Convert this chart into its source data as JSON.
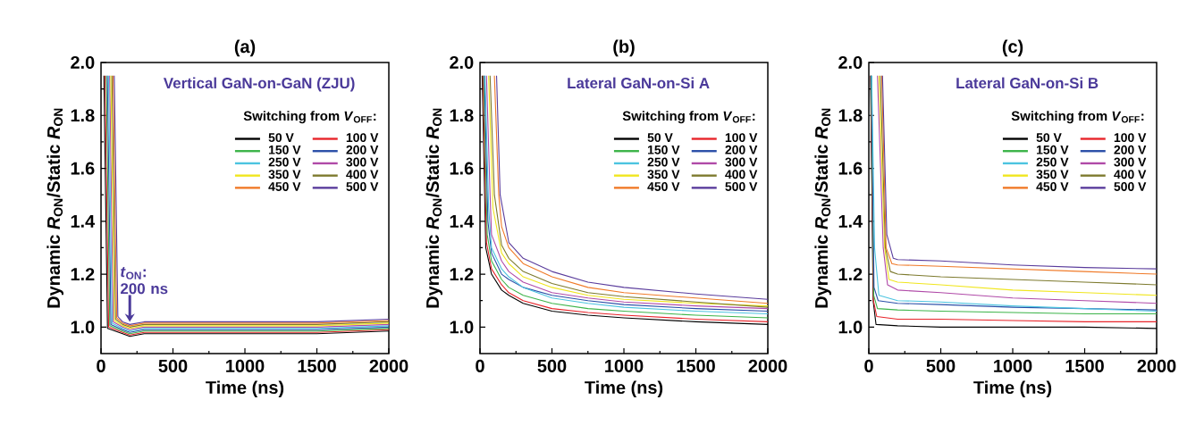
{
  "chart_data": [
    {
      "type": "line",
      "title": "(a)",
      "subtitle": "Vertical GaN-on-GaN (ZJU)",
      "xlabel": "Time (ns)",
      "ylabel": "Dynamic *R*$_{ON}$/Static *R*$_{ON}$",
      "legend_title": "Switching from *V*$_{OFF}$:",
      "legend": "top right",
      "xlim": [
        0,
        2000
      ],
      "ylim": [
        0.9,
        2.0
      ],
      "xticks": [
        0,
        500,
        1000,
        1500,
        2000
      ],
      "yticks": [
        {
          "value": 1.0,
          "label": "1.0"
        },
        {
          "value": 1.2,
          "label": "1.2"
        },
        {
          "value": 1.4,
          "label": "1.4"
        },
        {
          "value": 1.6,
          "label": "1.6"
        },
        {
          "value": 1.8,
          "label": "1.8"
        },
        {
          "value": 2.0,
          "label": "2.0"
        }
      ],
      "annotations": [
        {
          "text": "*t*$_{ON}$: 200 ns",
          "x": 200,
          "y": 1.02
        }
      ],
      "series": [
        {
          "name": "50 V",
          "color": "#000000",
          "x": [
            20,
            45,
            150,
            200,
            300,
            500,
            1000,
            1500,
            2000
          ],
          "values": [
            1.95,
            0.995,
            0.975,
            0.965,
            0.975,
            0.975,
            0.975,
            0.975,
            0.985
          ]
        },
        {
          "name": "100 V",
          "color": "#e8242a",
          "x": [
            28,
            53,
            150,
            200,
            300,
            500,
            1000,
            1500,
            2000
          ],
          "values": [
            1.95,
            1.0,
            0.98,
            0.97,
            0.98,
            0.98,
            0.98,
            0.98,
            0.99
          ]
        },
        {
          "name": "150 V",
          "color": "#3cb449",
          "x": [
            36,
            61,
            150,
            200,
            300,
            500,
            1000,
            1500,
            2000
          ],
          "values": [
            1.95,
            1.005,
            0.985,
            0.975,
            0.985,
            0.985,
            0.985,
            0.985,
            0.995
          ]
        },
        {
          "name": "200 V",
          "color": "#2a4fa8",
          "x": [
            44,
            69,
            150,
            200,
            300,
            500,
            1000,
            1500,
            2000
          ],
          "values": [
            1.95,
            1.01,
            0.99,
            0.98,
            0.99,
            0.99,
            0.99,
            0.99,
            1.0
          ]
        },
        {
          "name": "250 V",
          "color": "#4cc4e0",
          "x": [
            52,
            77,
            150,
            200,
            300,
            500,
            1000,
            1500,
            2000
          ],
          "values": [
            1.95,
            1.015,
            0.995,
            0.985,
            0.995,
            0.995,
            0.995,
            0.995,
            1.005
          ]
        },
        {
          "name": "300 V",
          "color": "#b04aa8",
          "x": [
            60,
            85,
            150,
            200,
            300,
            500,
            1000,
            1500,
            2000
          ],
          "values": [
            1.95,
            1.02,
            1.0,
            0.99,
            1.0,
            1.0,
            1.0,
            1.0,
            1.01
          ]
        },
        {
          "name": "350 V",
          "color": "#f0e61e",
          "x": [
            68,
            93,
            150,
            200,
            300,
            500,
            1000,
            1500,
            2000
          ],
          "values": [
            1.95,
            1.025,
            1.005,
            0.995,
            1.005,
            1.005,
            1.005,
            1.005,
            1.015
          ]
        },
        {
          "name": "400 V",
          "color": "#7d7a2e",
          "x": [
            76,
            101,
            150,
            200,
            300,
            500,
            1000,
            1500,
            2000
          ],
          "values": [
            1.95,
            1.03,
            1.01,
            1.0,
            1.01,
            1.01,
            1.01,
            1.01,
            1.02
          ]
        },
        {
          "name": "450 V",
          "color": "#f07a28",
          "x": [
            84,
            109,
            150,
            200,
            300,
            500,
            1000,
            1500,
            2000
          ],
          "values": [
            1.95,
            1.035,
            1.015,
            1.005,
            1.015,
            1.015,
            1.015,
            1.015,
            1.025
          ]
        },
        {
          "name": "500 V",
          "color": "#5a3c9c",
          "x": [
            92,
            117,
            150,
            200,
            300,
            500,
            1000,
            1500,
            2000
          ],
          "values": [
            1.95,
            1.04,
            1.02,
            1.01,
            1.02,
            1.02,
            1.02,
            1.02,
            1.03
          ]
        }
      ]
    },
    {
      "type": "line",
      "title": "(b)",
      "subtitle": "Lateral GaN-on-Si A",
      "xlabel": "Time (ns)",
      "ylabel": "Dynamic *R*$_{ON}$/Static *R*$_{ON}$",
      "legend_title": "Switching from *V*$_{OFF}$:",
      "legend": "top right",
      "xlim": [
        0,
        2000
      ],
      "ylim": [
        0.9,
        2.0
      ],
      "xticks": [
        0,
        500,
        1000,
        1500,
        2000
      ],
      "yticks": [
        {
          "value": 1.0,
          "label": "1.0"
        },
        {
          "value": 1.2,
          "label": "1.2"
        },
        {
          "value": 1.4,
          "label": "1.4"
        },
        {
          "value": 1.6,
          "label": "1.6"
        },
        {
          "value": 1.8,
          "label": "1.8"
        },
        {
          "value": 2.0,
          "label": "2.0"
        }
      ],
      "series": [
        {
          "name": "50 V",
          "color": "#000000",
          "x": [
            15,
            40,
            80,
            150,
            200,
            300,
            500,
            750,
            1000,
            1500,
            2000
          ],
          "values": [
            1.95,
            1.3,
            1.2,
            1.14,
            1.12,
            1.09,
            1.06,
            1.045,
            1.035,
            1.02,
            1.01
          ]
        },
        {
          "name": "100 V",
          "color": "#e8242a",
          "x": [
            20,
            45,
            80,
            150,
            200,
            300,
            500,
            750,
            1000,
            1500,
            2000
          ],
          "values": [
            1.95,
            1.32,
            1.22,
            1.16,
            1.13,
            1.1,
            1.07,
            1.055,
            1.045,
            1.03,
            1.02
          ]
        },
        {
          "name": "150 V",
          "color": "#3cb449",
          "x": [
            25,
            50,
            80,
            150,
            200,
            300,
            500,
            750,
            1000,
            1500,
            2000
          ],
          "values": [
            1.95,
            1.35,
            1.25,
            1.18,
            1.15,
            1.12,
            1.09,
            1.07,
            1.06,
            1.045,
            1.035
          ]
        },
        {
          "name": "200 V",
          "color": "#2a4fa8",
          "x": [
            30,
            55,
            80,
            150,
            200,
            300,
            500,
            750,
            1000,
            1500,
            2000
          ],
          "values": [
            1.95,
            1.4,
            1.28,
            1.2,
            1.18,
            1.15,
            1.12,
            1.1,
            1.085,
            1.07,
            1.06
          ]
        },
        {
          "name": "250 V",
          "color": "#4cc4e0",
          "x": [
            35,
            60,
            80,
            150,
            200,
            300,
            500,
            750,
            1000,
            1500,
            2000
          ],
          "values": [
            1.95,
            1.45,
            1.3,
            1.22,
            1.19,
            1.15,
            1.11,
            1.09,
            1.075,
            1.06,
            1.05
          ]
        },
        {
          "name": "300 V",
          "color": "#b04aa8",
          "x": [
            45,
            70,
            80,
            150,
            200,
            300,
            500,
            750,
            1000,
            1500,
            2000
          ],
          "values": [
            1.95,
            1.5,
            1.35,
            1.25,
            1.21,
            1.17,
            1.13,
            1.11,
            1.095,
            1.08,
            1.07
          ]
        },
        {
          "name": "350 V",
          "color": "#f0e61e",
          "x": [
            60,
            90,
            150,
            200,
            300,
            500,
            750,
            1000,
            1500,
            2000
          ],
          "values": [
            1.95,
            1.45,
            1.28,
            1.24,
            1.19,
            1.15,
            1.12,
            1.105,
            1.09,
            1.08
          ]
        },
        {
          "name": "400 V",
          "color": "#7d7a2e",
          "x": [
            70,
            100,
            150,
            200,
            300,
            500,
            750,
            1000,
            1500,
            2000
          ],
          "values": [
            1.95,
            1.5,
            1.31,
            1.26,
            1.21,
            1.165,
            1.13,
            1.115,
            1.095,
            1.075
          ]
        },
        {
          "name": "450 V",
          "color": "#f07a28",
          "x": [
            100,
            130,
            150,
            200,
            300,
            500,
            750,
            1000,
            1500,
            2000
          ],
          "values": [
            1.95,
            1.5,
            1.38,
            1.3,
            1.24,
            1.19,
            1.15,
            1.13,
            1.11,
            1.09
          ]
        },
        {
          "name": "500 V",
          "color": "#5a3c9c",
          "x": [
            115,
            140,
            200,
            300,
            500,
            750,
            1000,
            1500,
            2000
          ],
          "values": [
            1.95,
            1.5,
            1.32,
            1.26,
            1.21,
            1.17,
            1.15,
            1.125,
            1.105
          ]
        }
      ]
    },
    {
      "type": "line",
      "title": "(c)",
      "subtitle": "Lateral GaN-on-Si B",
      "xlabel": "Time (ns)",
      "ylabel": "Dynamic *R*$_{ON}$/Static *R*$_{ON}$",
      "legend_title": "Switching from *V*$_{OFF}$:",
      "legend": "top right",
      "xlim": [
        0,
        2000
      ],
      "ylim": [
        0.9,
        2.0
      ],
      "xticks": [
        0,
        500,
        1000,
        1500,
        2000
      ],
      "yticks": [
        {
          "value": 1.0,
          "label": "1.0"
        },
        {
          "value": 1.2,
          "label": "1.2"
        },
        {
          "value": 1.4,
          "label": "1.4"
        },
        {
          "value": 1.6,
          "label": "1.6"
        },
        {
          "value": 1.8,
          "label": "1.8"
        },
        {
          "value": 2.0,
          "label": "2.0"
        }
      ],
      "series": [
        {
          "name": "50 V",
          "color": "#000000",
          "x": [
            12,
            30,
            50,
            200,
            500,
            1000,
            1500,
            2000
          ],
          "values": [
            1.95,
            1.1,
            1.01,
            1.005,
            1.0,
            1.0,
            1.0,
            0.995
          ]
        },
        {
          "name": "100 V",
          "color": "#e8242a",
          "x": [
            14,
            32,
            55,
            200,
            500,
            1000,
            1500,
            2000
          ],
          "values": [
            1.95,
            1.1,
            1.04,
            1.03,
            1.03,
            1.025,
            1.02,
            1.02
          ]
        },
        {
          "name": "150 V",
          "color": "#3cb449",
          "x": [
            16,
            34,
            60,
            200,
            500,
            1000,
            1500,
            2000
          ],
          "values": [
            1.95,
            1.12,
            1.07,
            1.065,
            1.06,
            1.055,
            1.05,
            1.05
          ]
        },
        {
          "name": "200 V",
          "color": "#2a4fa8",
          "x": [
            18,
            36,
            65,
            200,
            500,
            1000,
            1500,
            2000
          ],
          "values": [
            1.95,
            1.15,
            1.1,
            1.09,
            1.085,
            1.075,
            1.07,
            1.065
          ]
        },
        {
          "name": "250 V",
          "color": "#4cc4e0",
          "x": [
            20,
            40,
            70,
            200,
            500,
            1000,
            1500,
            2000
          ],
          "values": [
            1.95,
            1.3,
            1.12,
            1.1,
            1.095,
            1.08,
            1.07,
            1.06
          ]
        },
        {
          "name": "300 V",
          "color": "#b04aa8",
          "x": [
            60,
            100,
            130,
            200,
            500,
            1000,
            1500,
            2000
          ],
          "values": [
            1.95,
            1.3,
            1.16,
            1.14,
            1.13,
            1.11,
            1.1,
            1.09
          ]
        },
        {
          "name": "350 V",
          "color": "#f0e61e",
          "x": [
            70,
            110,
            140,
            200,
            500,
            1000,
            1500,
            2000
          ],
          "values": [
            1.95,
            1.3,
            1.18,
            1.17,
            1.16,
            1.14,
            1.13,
            1.12
          ]
        },
        {
          "name": "400 V",
          "color": "#7d7a2e",
          "x": [
            80,
            115,
            150,
            200,
            500,
            1000,
            1500,
            2000
          ],
          "values": [
            1.95,
            1.3,
            1.21,
            1.2,
            1.19,
            1.18,
            1.17,
            1.16
          ]
        },
        {
          "name": "450 V",
          "color": "#f07a28",
          "x": [
            90,
            120,
            160,
            200,
            500,
            1000,
            1500,
            2000
          ],
          "values": [
            1.95,
            1.3,
            1.24,
            1.235,
            1.23,
            1.22,
            1.21,
            1.2
          ]
        },
        {
          "name": "500 V",
          "color": "#5a3c9c",
          "x": [
            95,
            125,
            170,
            200,
            500,
            1000,
            1500,
            2000
          ],
          "values": [
            1.95,
            1.35,
            1.26,
            1.255,
            1.25,
            1.235,
            1.225,
            1.22
          ]
        }
      ]
    }
  ]
}
